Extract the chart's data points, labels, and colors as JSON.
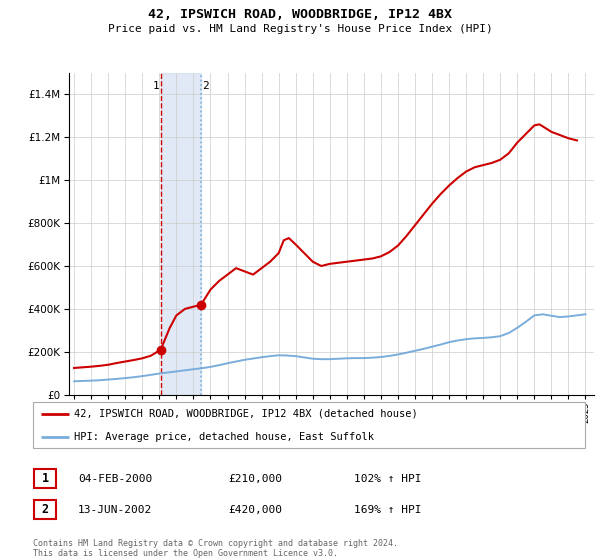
{
  "title": "42, IPSWICH ROAD, WOODBRIDGE, IP12 4BX",
  "subtitle": "Price paid vs. HM Land Registry's House Price Index (HPI)",
  "hpi_label": "HPI: Average price, detached house, East Suffolk",
  "property_label": "42, IPSWICH ROAD, WOODBRIDGE, IP12 4BX (detached house)",
  "footer": "Contains HM Land Registry data © Crown copyright and database right 2024.\nThis data is licensed under the Open Government Licence v3.0.",
  "sale1_date": "04-FEB-2000",
  "sale1_price": "£210,000",
  "sale1_hpi": "102% ↑ HPI",
  "sale2_date": "13-JUN-2002",
  "sale2_price": "£420,000",
  "sale2_hpi": "169% ↑ HPI",
  "property_color": "#cc0000",
  "hpi_color": "#7aaddb",
  "sale1_vline_color": "#cc0000",
  "sale2_vline_color": "#7aaddb",
  "shade_color": "#c8d8ee",
  "ylim": [
    0,
    1500000
  ],
  "yticks": [
    0,
    200000,
    400000,
    600000,
    800000,
    1000000,
    1200000,
    1400000
  ],
  "xlim_start": 1994.7,
  "xlim_end": 2025.5,
  "hpi_years": [
    1995,
    1995.5,
    1996,
    1996.5,
    1997,
    1997.5,
    1998,
    1998.5,
    1999,
    1999.5,
    2000,
    2000.5,
    2001,
    2001.5,
    2002,
    2002.5,
    2003,
    2003.5,
    2004,
    2004.5,
    2005,
    2005.5,
    2006,
    2006.5,
    2007,
    2007.5,
    2008,
    2008.5,
    2009,
    2009.5,
    2010,
    2010.5,
    2011,
    2011.5,
    2012,
    2012.5,
    2013,
    2013.5,
    2014,
    2014.5,
    2015,
    2015.5,
    2016,
    2016.5,
    2017,
    2017.5,
    2018,
    2018.5,
    2019,
    2019.5,
    2020,
    2020.5,
    2021,
    2021.5,
    2022,
    2022.5,
    2023,
    2023.5,
    2024,
    2024.5,
    2025
  ],
  "hpi_values": [
    63000,
    64500,
    66000,
    68000,
    71000,
    74000,
    78000,
    82000,
    87000,
    93000,
    99000,
    104000,
    109000,
    114000,
    119000,
    124000,
    130000,
    138000,
    147000,
    155000,
    163000,
    169000,
    175000,
    180000,
    184000,
    183000,
    180000,
    174000,
    168000,
    166000,
    166000,
    168000,
    170000,
    171000,
    171000,
    173000,
    176000,
    181000,
    188000,
    196000,
    205000,
    214000,
    224000,
    234000,
    245000,
    253000,
    259000,
    263000,
    265000,
    268000,
    273000,
    288000,
    312000,
    340000,
    370000,
    375000,
    368000,
    362000,
    365000,
    370000,
    375000
  ],
  "prop_years": [
    1995,
    1995.5,
    1996,
    1996.5,
    1997,
    1997.5,
    1998,
    1998.5,
    1999,
    1999.5,
    2000.08,
    2000.6,
    2001.0,
    2001.5,
    2002.45,
    2003.0,
    2003.5,
    2004,
    2004.5,
    2005,
    2005.5,
    2006,
    2006.5,
    2007,
    2007.3,
    2007.6,
    2008,
    2008.5,
    2009,
    2009.5,
    2010,
    2010.5,
    2011,
    2011.5,
    2012,
    2012.5,
    2013,
    2013.5,
    2014,
    2014.5,
    2015,
    2015.5,
    2016,
    2016.5,
    2017,
    2017.5,
    2018,
    2018.5,
    2019,
    2019.5,
    2020,
    2020.5,
    2021,
    2021.5,
    2022,
    2022.3,
    2022.7,
    2023,
    2023.5,
    2024,
    2024.5
  ],
  "prop_values": [
    125000,
    128000,
    131000,
    135000,
    140000,
    148000,
    155000,
    162000,
    170000,
    182000,
    210000,
    310000,
    370000,
    400000,
    420000,
    490000,
    530000,
    560000,
    590000,
    575000,
    560000,
    590000,
    620000,
    660000,
    720000,
    730000,
    700000,
    660000,
    620000,
    600000,
    610000,
    615000,
    620000,
    625000,
    630000,
    635000,
    645000,
    665000,
    695000,
    740000,
    790000,
    840000,
    890000,
    935000,
    975000,
    1010000,
    1040000,
    1060000,
    1070000,
    1080000,
    1095000,
    1125000,
    1175000,
    1215000,
    1255000,
    1260000,
    1240000,
    1225000,
    1210000,
    1195000,
    1185000
  ],
  "sale1_x": 2000.08,
  "sale2_x": 2002.45,
  "marker1_y": 210000,
  "marker2_y": 420000,
  "bg_color": "#ffffff"
}
